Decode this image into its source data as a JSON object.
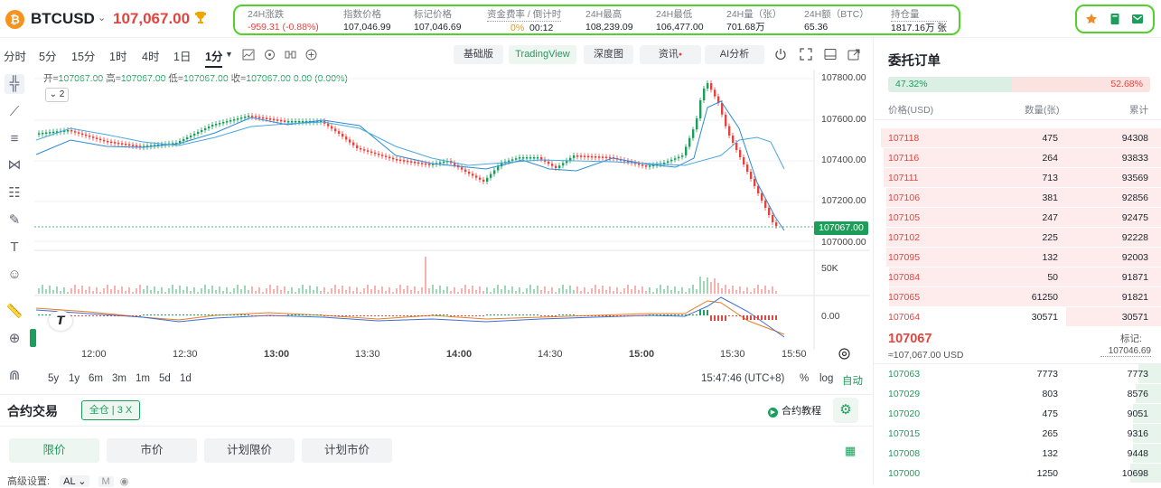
{
  "header": {
    "symbol": "BTCUSD",
    "last_price": "107,067.00",
    "logo_glyph": "₿",
    "stats": [
      {
        "label": "24H涨跌",
        "value": "-959.31 (-0.88%)",
        "tone": "red"
      },
      {
        "label": "指数价格",
        "value": "107,046.99",
        "tone": ""
      },
      {
        "label": "标记价格",
        "value": "107,046.69",
        "tone": ""
      },
      {
        "label": "资金费率 / 倒计时",
        "value_rate": "0%",
        "value_timer": "00:12",
        "tone": "orange"
      },
      {
        "label": "24H最高",
        "value": "108,239.09",
        "tone": ""
      },
      {
        "label": "24H最低",
        "value": "106,477.00",
        "tone": ""
      },
      {
        "label": "24H量（张）",
        "value": "701.68万",
        "tone": ""
      },
      {
        "label": "24H额（BTC）",
        "value": "65.36",
        "tone": ""
      },
      {
        "label": "持仓量",
        "value": "1817.16万 张",
        "tone": ""
      }
    ]
  },
  "intervals": [
    "分时",
    "5分",
    "15分",
    "1时",
    "4时",
    "1日",
    "1分"
  ],
  "active_interval": "1分",
  "view_buttons": {
    "basic": "基础版",
    "tradingview": "TradingView",
    "depth": "深度图",
    "news": "资讯",
    "ai": "AI分析"
  },
  "ohlc": {
    "open_k": "开=",
    "open": "107067.00",
    "high_k": "高=",
    "high": "107067.00",
    "low_k": "低=",
    "low": "107067.00",
    "close_k": "收=",
    "close": "107067.00",
    "change": "0.00 (0.00%)"
  },
  "collapse_label": "⌄ 2",
  "y_axis": [
    "107800.00",
    "107600.00",
    "107400.00",
    "107200.00",
    "107000.00"
  ],
  "current_price_label": "107067.00",
  "volume_label": "50K",
  "osc_label": "0.00",
  "x_axis": [
    "12:00",
    "12:30",
    "13:00",
    "13:30",
    "14:00",
    "14:30",
    "15:00",
    "15:30",
    "15:50"
  ],
  "ranges": [
    "5y",
    "1y",
    "6m",
    "3m",
    "1m",
    "5d",
    "1d"
  ],
  "clock": "15:47:46 (UTC+8)",
  "scale_opts": {
    "pct": "%",
    "log": "log",
    "auto": "自动"
  },
  "trade": {
    "title": "合约交易",
    "position_mode": "全仓 | 3 X",
    "tutorial": "合约教程",
    "order_tabs": [
      "限价",
      "市价",
      "计划限价",
      "计划市价"
    ],
    "adv_label": "高级设置:",
    "adv_value": "AL ⌄",
    "adv_m": "M"
  },
  "orderbook": {
    "title": "委托订单",
    "buy_ratio": "47.32%",
    "sell_ratio": "52.68%",
    "buy_ratio_value": 47.32,
    "headers": {
      "price": "价格(USD)",
      "qty": "数量(张)",
      "cum": "累计"
    },
    "asks": [
      {
        "p": "107118",
        "q": "475",
        "c": "94308",
        "depth": 100
      },
      {
        "p": "107116",
        "q": "264",
        "c": "93833",
        "depth": 99
      },
      {
        "p": "107111",
        "q": "713",
        "c": "93569",
        "depth": 99
      },
      {
        "p": "107106",
        "q": "381",
        "c": "92856",
        "depth": 98
      },
      {
        "p": "107105",
        "q": "247",
        "c": "92475",
        "depth": 98
      },
      {
        "p": "107102",
        "q": "225",
        "c": "92228",
        "depth": 98
      },
      {
        "p": "107095",
        "q": "132",
        "c": "92003",
        "depth": 98
      },
      {
        "p": "107084",
        "q": "50",
        "c": "91871",
        "depth": 97
      },
      {
        "p": "107065",
        "q": "61250",
        "c": "91821",
        "depth": 97
      },
      {
        "p": "107064",
        "q": "30571",
        "c": "30571",
        "depth": 34
      }
    ],
    "mid_price": "107067",
    "mid_usd": "≈107,067.00 USD",
    "mark_label": "标记:",
    "mark_value": "107046.69",
    "bids": [
      {
        "p": "107063",
        "q": "7773",
        "c": "7773",
        "depth": 8
      },
      {
        "p": "107029",
        "q": "803",
        "c": "8576",
        "depth": 9
      },
      {
        "p": "107020",
        "q": "475",
        "c": "9051",
        "depth": 10
      },
      {
        "p": "107015",
        "q": "265",
        "c": "9316",
        "depth": 10
      },
      {
        "p": "107008",
        "q": "132",
        "c": "9448",
        "depth": 10
      },
      {
        "p": "107000",
        "q": "1250",
        "c": "10698",
        "depth": 11
      }
    ]
  },
  "colors": {
    "up": "#1b9e5a",
    "down": "#e0463f",
    "highlight": "#52d12a"
  }
}
